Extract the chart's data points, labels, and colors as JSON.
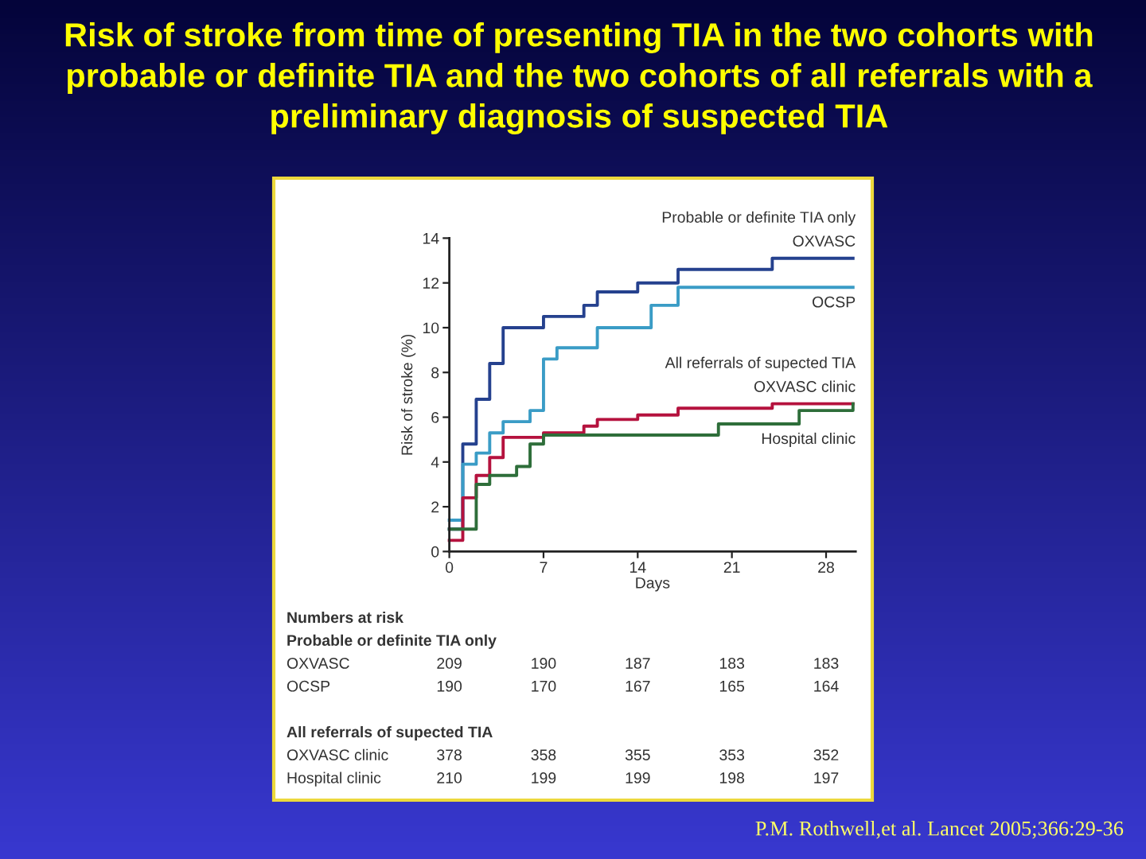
{
  "chart_data": [
    {
      "type": "step",
      "title": "Risk of stroke from time of presenting TIA in the two cohorts with probable or definite TIA and the two cohorts of all referrals with a preliminary diagnosis of suspected TIA",
      "xlabel": "Days",
      "ylabel": "Risk of stroke (%)",
      "xlim": [
        0,
        30.2
      ],
      "xticks": [
        0,
        7,
        14,
        21,
        28
      ],
      "ylim": [
        0,
        14
      ],
      "yticks": [
        0,
        2,
        4,
        6,
        8,
        10,
        12,
        14
      ],
      "series": [
        {
          "name": "OXVASC",
          "color": "#25418e",
          "x": [
            0,
            1,
            2,
            3,
            4,
            7,
            10,
            11,
            14,
            17,
            24,
            30
          ],
          "values": [
            1.0,
            4.8,
            6.8,
            8.4,
            10.0,
            10.5,
            11.0,
            11.6,
            12.0,
            12.6,
            13.1,
            13.1
          ]
        },
        {
          "name": "OCSP",
          "color": "#3a9cc6",
          "x": [
            0,
            1,
            2,
            3,
            4,
            6,
            7,
            8,
            11,
            15,
            17,
            30
          ],
          "values": [
            1.4,
            3.9,
            4.4,
            5.3,
            5.8,
            6.3,
            8.6,
            9.1,
            10.0,
            11.0,
            11.8,
            11.8
          ]
        },
        {
          "name": "OXVASC clinic",
          "color": "#b5123e",
          "x": [
            0,
            1,
            2,
            3,
            4,
            7,
            10,
            11,
            14,
            17,
            24,
            30
          ],
          "values": [
            0.5,
            2.4,
            3.4,
            4.2,
            5.1,
            5.3,
            5.6,
            5.9,
            6.1,
            6.4,
            6.6,
            6.6
          ]
        },
        {
          "name": "Hospital clinic",
          "color": "#2e6e3a",
          "x": [
            0,
            2,
            3,
            5,
            6,
            7,
            20,
            26,
            30
          ],
          "values": [
            1.0,
            3.0,
            3.4,
            3.8,
            4.8,
            5.2,
            5.7,
            6.3,
            6.6
          ]
        }
      ],
      "annotations": [
        "Probable or definite TIA only",
        "All referrals of supected TIA",
        "P.M. Rothwell,et al. Lancet 2005;366:29-36"
      ]
    },
    {
      "type": "other",
      "title": "Numbers at risk",
      "annotations": [
        "Probable or definite TIA only",
        "OXVASC",
        "209",
        "190",
        "187",
        "183",
        "183",
        "OCSP",
        "190",
        "170",
        "167",
        "165",
        "164",
        "All referrals of supected TIA",
        "OXVASC clinic",
        "378",
        "358",
        "355",
        "353",
        "352",
        "Hospital clinic",
        "210",
        "199",
        "199",
        "198",
        "197"
      ]
    }
  ]
}
